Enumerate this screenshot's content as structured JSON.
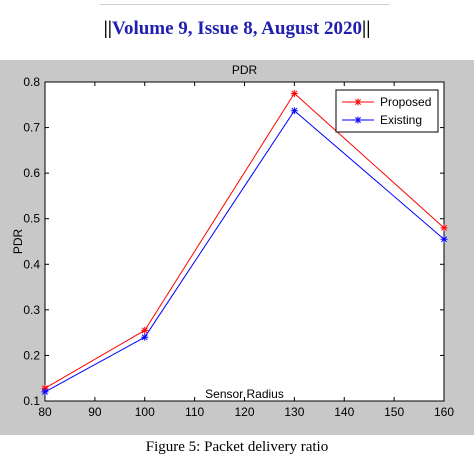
{
  "header": {
    "open_bars": "||",
    "text": "Volume 9, Issue 8, August 2020",
    "close_bars": "||"
  },
  "caption": "Figure 5: Packet delivery ratio",
  "chart_data": {
    "type": "line",
    "title": "PDR",
    "xlabel": "Sensor Radius",
    "ylabel": "PDR",
    "x": [
      80,
      100,
      130,
      160
    ],
    "xlim": [
      80,
      160
    ],
    "ylim": [
      0.1,
      0.8
    ],
    "xticks": [
      80,
      90,
      100,
      110,
      120,
      130,
      140,
      150,
      160
    ],
    "yticks": [
      0.1,
      0.2,
      0.3,
      0.4,
      0.5,
      0.6,
      0.7,
      0.8
    ],
    "grid": false,
    "legend_position": "top-right",
    "series": [
      {
        "name": "Proposed",
        "color": "#ff0000",
        "marker": "asterisk",
        "values": [
          0.128,
          0.255,
          0.775,
          0.48
        ]
      },
      {
        "name": "Existing",
        "color": "#0000ff",
        "marker": "asterisk",
        "values": [
          0.12,
          0.24,
          0.737,
          0.455
        ]
      }
    ],
    "colors": {
      "panel_background": "#c8c8c8",
      "plot_background": "#ffffff",
      "axis": "#000000"
    }
  }
}
